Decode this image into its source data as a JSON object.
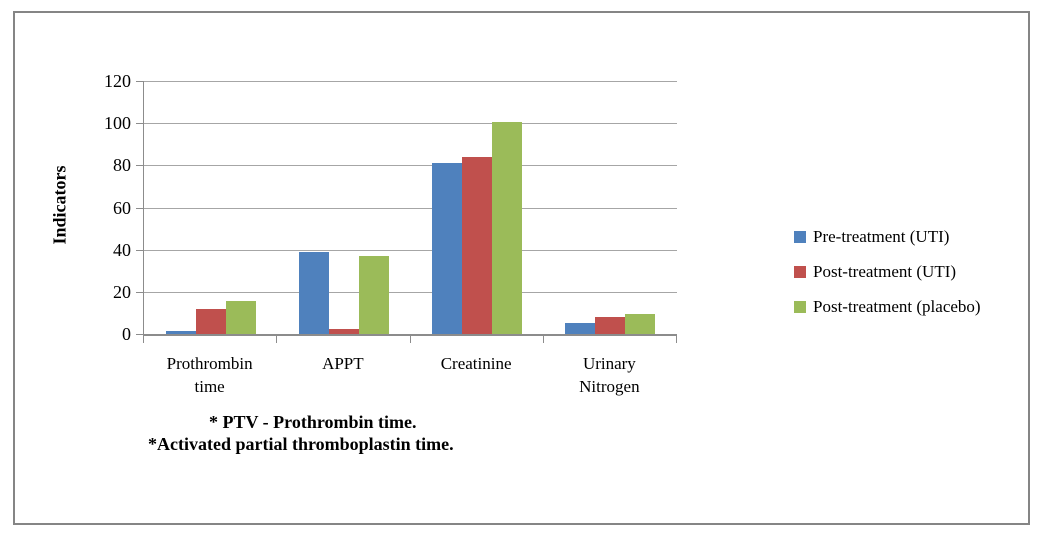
{
  "window": {
    "background": "#FFFFFF",
    "frame_border_color": "#858585"
  },
  "chart_data": {
    "type": "bar",
    "title": "",
    "xlabel": "",
    "ylabel": "Indicators",
    "ylim": [
      0,
      120
    ],
    "yticks": [
      0,
      20,
      40,
      60,
      80,
      100,
      120
    ],
    "grid": true,
    "legend_position": "right-center",
    "gridline_color": "#A6A6A6",
    "axis_color": "#8C8C8C",
    "text_color": "#000000",
    "categories": [
      "Prothrombin time",
      "APPT",
      "Creatinine",
      "Urinary Nitrogen"
    ],
    "category_label_lines": [
      [
        "Prothrombin",
        "time"
      ],
      [
        "APPT"
      ],
      [
        "Creatinine"
      ],
      [
        "Urinary",
        "Nitrogen"
      ]
    ],
    "series": [
      {
        "name": "Pre-treatment (UTI)",
        "color": "#4F81BD",
        "values": [
          1.5,
          39,
          81,
          5
        ]
      },
      {
        "name": "Post-treatment (UTI)",
        "color": "#C0504D",
        "values": [
          12,
          2.5,
          84,
          8
        ]
      },
      {
        "name": "Post-treatment (placebo)",
        "color": "#9BBB59",
        "values": [
          15.5,
          37,
          100.5,
          9.5
        ]
      }
    ],
    "footnotes": [
      "* PTV - Prothrombin time.",
      "*Activated partial thromboplastin time."
    ]
  }
}
